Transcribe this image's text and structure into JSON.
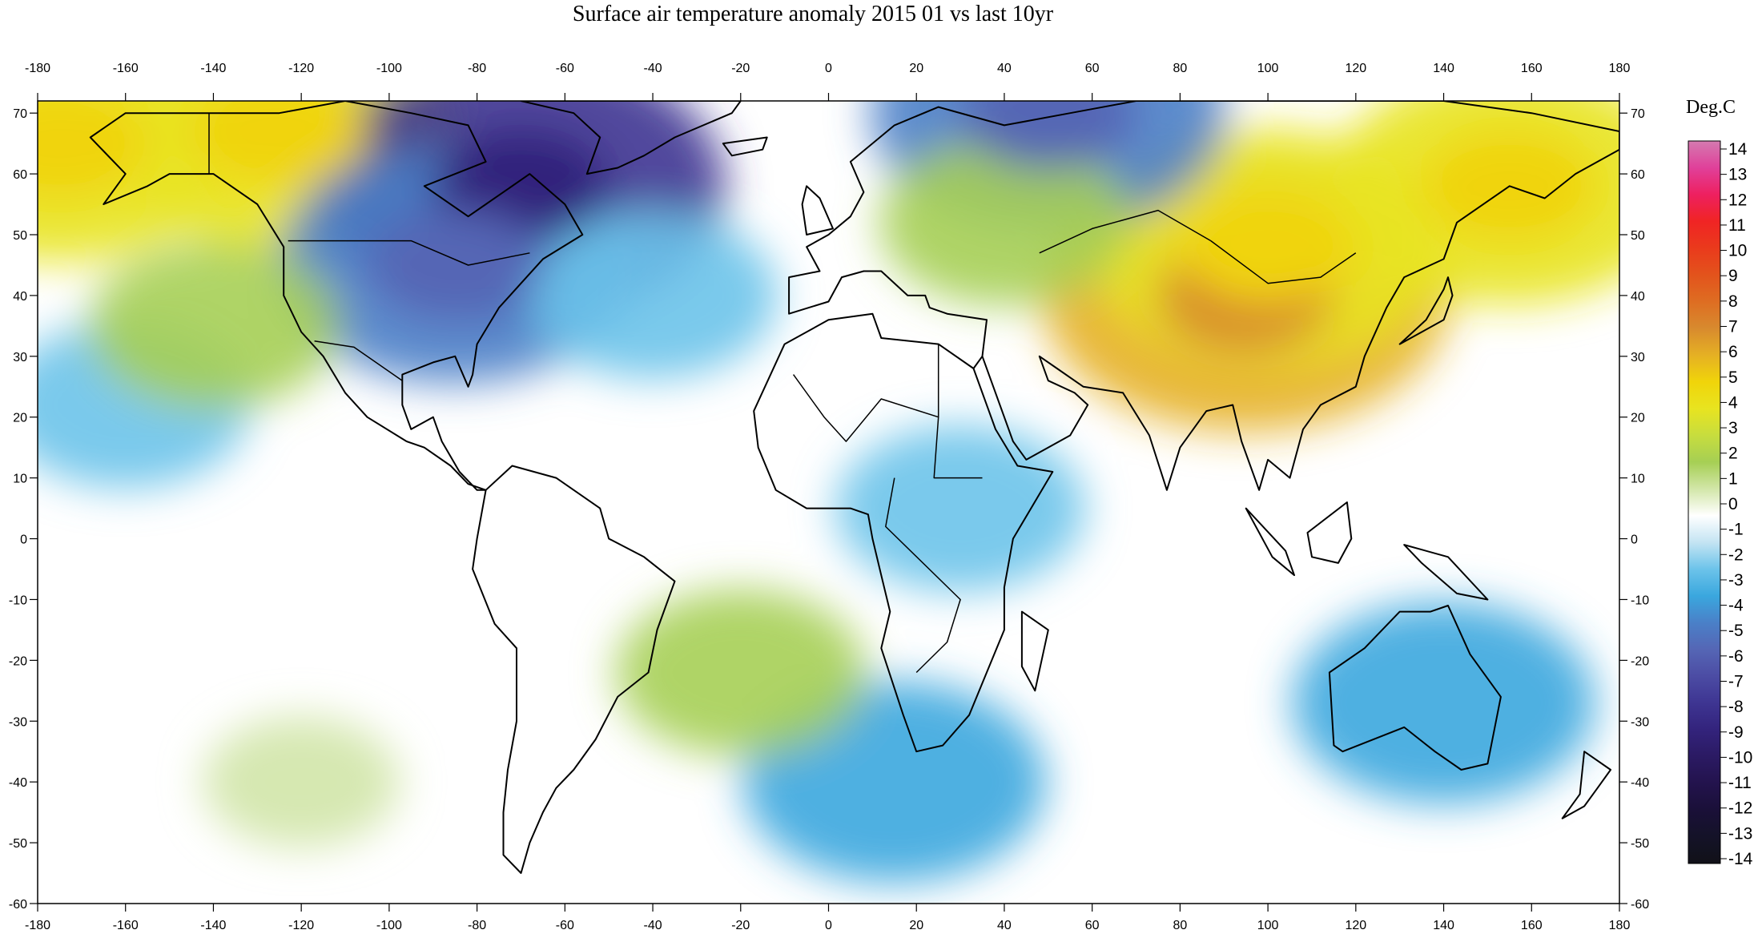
{
  "title": "Surface air temperature anomaly 2015 01 vs last 10yr",
  "axes": {
    "x_ticks": [
      "-180",
      "-160",
      "-140",
      "-120",
      "-100",
      "-80",
      "-60",
      "-40",
      "-20",
      "0",
      "20",
      "40",
      "60",
      "80",
      "100",
      "120",
      "140",
      "160",
      "180"
    ],
    "y_ticks": [
      "70",
      "60",
      "50",
      "40",
      "30",
      "20",
      "10",
      "0",
      "-10",
      "-20",
      "-30",
      "-40",
      "-50",
      "-60"
    ],
    "lon_range": [
      -180,
      180
    ],
    "lat_range": [
      -60,
      72
    ]
  },
  "colorbar": {
    "title": "Deg.C",
    "labels": [
      "14",
      "13",
      "12",
      "11",
      "10",
      "9",
      "8",
      "7",
      "6",
      "5",
      "4",
      "3",
      "2",
      "1",
      "0",
      "-1",
      "-2",
      "-3",
      "-4",
      "-5",
      "-6",
      "-7",
      "-8",
      "-9",
      "-10",
      "-11",
      "-12",
      "-13",
      "-14"
    ],
    "colors": [
      "#d47ab0",
      "#e0409a",
      "#ee2060",
      "#f02424",
      "#ea3a1c",
      "#e3531c",
      "#de6d22",
      "#d88a2e",
      "#e5b024",
      "#f0d40a",
      "#e8e420",
      "#c7dd3e",
      "#a6cf54",
      "#d2e6a8",
      "#ffffff",
      "#c4e4f3",
      "#6cc3ea",
      "#3aa7de",
      "#4a80c8",
      "#5566b5",
      "#4c4ca4",
      "#3e3592",
      "#33237c",
      "#2b1a63",
      "#23134d",
      "#1a1038",
      "#141228",
      "#111118"
    ]
  },
  "chart_data": {
    "type": "heatmap",
    "title": "Surface air temperature anomaly 2015 01 vs last 10yr",
    "xlabel": "",
    "ylabel": "",
    "xlim": [
      -180,
      180
    ],
    "ylim": [
      -60,
      72
    ],
    "colorbar_range": [
      -14,
      14
    ],
    "colorbar_unit": "Deg.C",
    "anomalies": [
      {
        "lon": 95,
        "lat": 40,
        "value": 6
      },
      {
        "lon": 100,
        "lat": 48,
        "value": 4
      },
      {
        "lon": 155,
        "lat": 58,
        "value": 4
      },
      {
        "lon": -125,
        "lat": 67,
        "value": 4
      },
      {
        "lon": -175,
        "lat": 65,
        "value": 4
      },
      {
        "lon": -70,
        "lat": 58,
        "value": -7
      },
      {
        "lon": -85,
        "lat": 45,
        "value": -4
      },
      {
        "lon": 50,
        "lat": 70,
        "value": -4
      },
      {
        "lon": 140,
        "lat": -27,
        "value": -3
      },
      {
        "lon": -160,
        "lat": 22,
        "value": -2
      },
      {
        "lon": 30,
        "lat": 5,
        "value": -2
      },
      {
        "lon": 15,
        "lat": -40,
        "value": -3
      },
      {
        "lon": -40,
        "lat": 40,
        "value": -2
      },
      {
        "lon": -140,
        "lat": 35,
        "value": 2
      },
      {
        "lon": -20,
        "lat": -22,
        "value": 2
      },
      {
        "lon": -120,
        "lat": -40,
        "value": 1
      },
      {
        "lon": 40,
        "lat": 52,
        "value": 2
      }
    ]
  }
}
